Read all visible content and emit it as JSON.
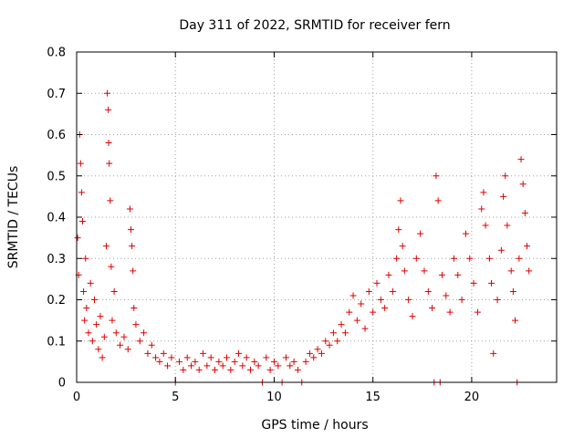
{
  "chart_data": {
    "type": "scatter",
    "title": "Day 311 of 2022, SRMTID for receiver fern",
    "xlabel": "GPS time / hours",
    "ylabel": "SRMTID / TECUs",
    "xlim": [
      0,
      24.3
    ],
    "ylim": [
      0,
      0.8
    ],
    "xticks": [
      0,
      5,
      10,
      15,
      20
    ],
    "xtick_labels": [
      "0",
      "5",
      "10",
      "15",
      "20"
    ],
    "yticks": [
      0,
      0.1,
      0.2,
      0.3,
      0.4,
      0.5,
      0.6,
      0.7,
      0.8
    ],
    "ytick_labels": [
      "0",
      "0.1",
      "0.2",
      "0.3",
      "0.4",
      "0.5",
      "0.6",
      "0.7",
      "0.8"
    ],
    "grid": true,
    "marker": "plus",
    "color": "#e00000",
    "series": [
      {
        "name": "SRMTID",
        "points": [
          [
            0.05,
            0.35
          ],
          [
            0.1,
            0.26
          ],
          [
            0.15,
            0.6
          ],
          [
            0.2,
            0.53
          ],
          [
            0.25,
            0.46
          ],
          [
            0.3,
            0.39
          ],
          [
            0.35,
            0.22
          ],
          [
            0.4,
            0.15
          ],
          [
            0.45,
            0.3
          ],
          [
            0.5,
            0.18
          ],
          [
            0.6,
            0.12
          ],
          [
            0.7,
            0.24
          ],
          [
            0.8,
            0.1
          ],
          [
            0.9,
            0.2
          ],
          [
            1.0,
            0.14
          ],
          [
            1.1,
            0.08
          ],
          [
            1.2,
            0.16
          ],
          [
            1.3,
            0.06
          ],
          [
            1.4,
            0.11
          ],
          [
            1.5,
            0.33
          ],
          [
            1.55,
            0.7
          ],
          [
            1.6,
            0.66
          ],
          [
            1.62,
            0.58
          ],
          [
            1.65,
            0.53
          ],
          [
            1.7,
            0.44
          ],
          [
            1.75,
            0.28
          ],
          [
            1.8,
            0.15
          ],
          [
            1.9,
            0.22
          ],
          [
            2.0,
            0.12
          ],
          [
            2.2,
            0.09
          ],
          [
            2.4,
            0.11
          ],
          [
            2.6,
            0.08
          ],
          [
            2.7,
            0.42
          ],
          [
            2.75,
            0.37
          ],
          [
            2.8,
            0.33
          ],
          [
            2.85,
            0.27
          ],
          [
            2.9,
            0.18
          ],
          [
            3.0,
            0.14
          ],
          [
            3.2,
            0.1
          ],
          [
            3.4,
            0.12
          ],
          [
            3.6,
            0.07
          ],
          [
            3.8,
            0.09
          ],
          [
            4.0,
            0.06
          ],
          [
            4.2,
            0.05
          ],
          [
            4.4,
            0.07
          ],
          [
            4.6,
            0.04
          ],
          [
            4.8,
            0.06
          ],
          [
            5.0,
            0.0
          ],
          [
            5.2,
            0.05
          ],
          [
            5.4,
            0.03
          ],
          [
            5.6,
            0.06
          ],
          [
            5.8,
            0.04
          ],
          [
            6.0,
            0.05
          ],
          [
            6.2,
            0.03
          ],
          [
            6.4,
            0.07
          ],
          [
            6.6,
            0.04
          ],
          [
            6.8,
            0.06
          ],
          [
            7.0,
            0.03
          ],
          [
            7.2,
            0.05
          ],
          [
            7.4,
            0.04
          ],
          [
            7.6,
            0.06
          ],
          [
            7.8,
            0.03
          ],
          [
            8.0,
            0.05
          ],
          [
            8.2,
            0.07
          ],
          [
            8.4,
            0.04
          ],
          [
            8.6,
            0.06
          ],
          [
            8.8,
            0.03
          ],
          [
            9.0,
            0.05
          ],
          [
            9.2,
            0.04
          ],
          [
            9.4,
            0.0
          ],
          [
            9.6,
            0.06
          ],
          [
            9.8,
            0.03
          ],
          [
            10.0,
            0.05
          ],
          [
            10.2,
            0.04
          ],
          [
            10.4,
            0.0
          ],
          [
            10.6,
            0.06
          ],
          [
            10.8,
            0.04
          ],
          [
            11.0,
            0.05
          ],
          [
            11.2,
            0.03
          ],
          [
            11.4,
            0.0
          ],
          [
            11.6,
            0.05
          ],
          [
            11.8,
            0.07
          ],
          [
            12.0,
            0.06
          ],
          [
            12.2,
            0.08
          ],
          [
            12.4,
            0.07
          ],
          [
            12.6,
            0.1
          ],
          [
            12.8,
            0.09
          ],
          [
            13.0,
            0.12
          ],
          [
            13.2,
            0.1
          ],
          [
            13.4,
            0.14
          ],
          [
            13.6,
            0.12
          ],
          [
            13.8,
            0.17
          ],
          [
            14.0,
            0.21
          ],
          [
            14.2,
            0.15
          ],
          [
            14.4,
            0.19
          ],
          [
            14.6,
            0.13
          ],
          [
            14.8,
            0.22
          ],
          [
            15.0,
            0.17
          ],
          [
            15.2,
            0.24
          ],
          [
            15.4,
            0.2
          ],
          [
            15.6,
            0.18
          ],
          [
            15.8,
            0.26
          ],
          [
            16.0,
            0.22
          ],
          [
            16.2,
            0.3
          ],
          [
            16.3,
            0.37
          ],
          [
            16.4,
            0.44
          ],
          [
            16.5,
            0.33
          ],
          [
            16.6,
            0.27
          ],
          [
            16.8,
            0.2
          ],
          [
            17.0,
            0.16
          ],
          [
            17.2,
            0.3
          ],
          [
            17.4,
            0.36
          ],
          [
            17.6,
            0.27
          ],
          [
            17.8,
            0.22
          ],
          [
            18.0,
            0.18
          ],
          [
            18.1,
            0.0
          ],
          [
            18.2,
            0.5
          ],
          [
            18.3,
            0.44
          ],
          [
            18.4,
            0.0
          ],
          [
            18.5,
            0.26
          ],
          [
            18.7,
            0.21
          ],
          [
            18.9,
            0.17
          ],
          [
            19.1,
            0.3
          ],
          [
            19.3,
            0.26
          ],
          [
            19.5,
            0.2
          ],
          [
            19.7,
            0.36
          ],
          [
            19.9,
            0.3
          ],
          [
            20.1,
            0.24
          ],
          [
            20.3,
            0.17
          ],
          [
            20.5,
            0.42
          ],
          [
            20.6,
            0.46
          ],
          [
            20.7,
            0.38
          ],
          [
            20.9,
            0.3
          ],
          [
            21.0,
            0.24
          ],
          [
            21.1,
            0.07
          ],
          [
            21.3,
            0.2
          ],
          [
            21.5,
            0.32
          ],
          [
            21.6,
            0.45
          ],
          [
            21.7,
            0.5
          ],
          [
            21.8,
            0.38
          ],
          [
            22.0,
            0.27
          ],
          [
            22.1,
            0.22
          ],
          [
            22.2,
            0.15
          ],
          [
            22.3,
            0.0
          ],
          [
            22.4,
            0.3
          ],
          [
            22.5,
            0.54
          ],
          [
            22.6,
            0.48
          ],
          [
            22.7,
            0.41
          ],
          [
            22.8,
            0.33
          ],
          [
            22.9,
            0.27
          ]
        ]
      }
    ]
  }
}
